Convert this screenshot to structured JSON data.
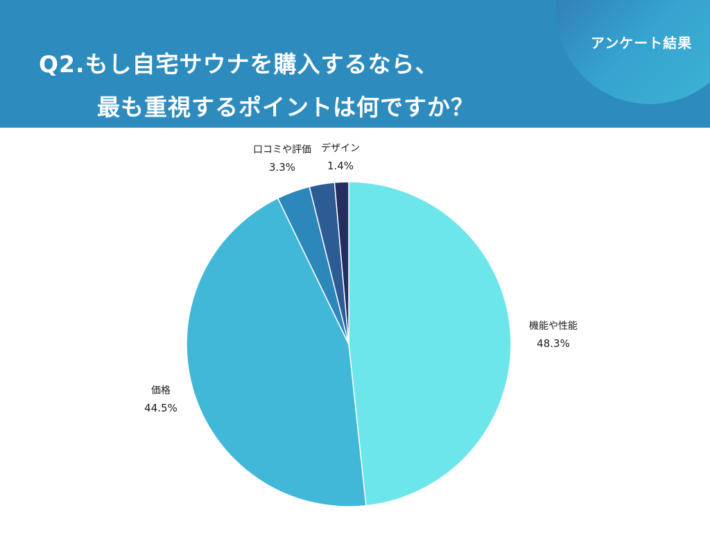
{
  "header": {
    "badge": "アンケート結果",
    "title_line1": "Q2.もし自宅サウナを購入するなら、",
    "title_line2": "最も重視するポイントは何ですか？"
  },
  "colors": {
    "header_bg": "#2e8bbd",
    "text": "#1a1a1a"
  },
  "chart_data": {
    "type": "pie",
    "title": "Q2.もし自宅サウナを購入するなら、最も重視するポイントは何ですか？",
    "start": "top, clockwise",
    "legend": "none (labels outside slices)",
    "slices": [
      {
        "label": "機能や性能",
        "value": 48.3,
        "display": "48.3%",
        "color": "#6ce6ea"
      },
      {
        "label": "価格",
        "value": 44.5,
        "display": "44.5%",
        "color": "#42b8d8"
      },
      {
        "label": "口コミや評価",
        "value": 3.3,
        "display": "3.3%",
        "color": "#2c88ba"
      },
      {
        "label": "",
        "value": 2.5,
        "display": "",
        "color": "#2d5c95"
      },
      {
        "label": "デザイン",
        "value": 1.4,
        "display": "1.4%",
        "color": "#252d61"
      }
    ]
  }
}
